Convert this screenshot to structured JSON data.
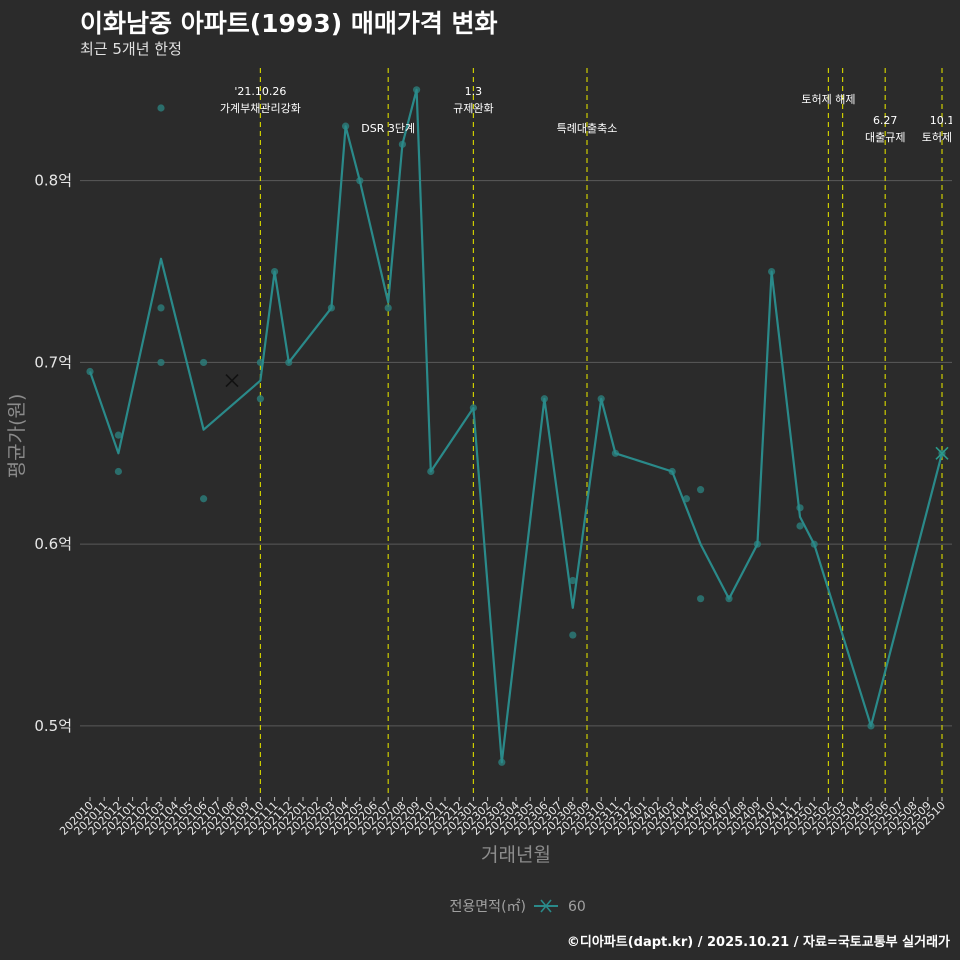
{
  "header": {
    "title": "이화남중 아파트(1993) 매매가격 변화",
    "subtitle": "최근 5개년 한정"
  },
  "caption": "©디아파트(dapt.kr) / 2025.10.21 / 자료=국토교통부 실거래가",
  "colors": {
    "background": "#2b2b2b",
    "series": "#2a8a8a",
    "points": "#2b7a78",
    "events": "#cccc00",
    "grid": "#5a5a5a"
  },
  "chart_data": {
    "type": "line",
    "xlabel": "거래년월",
    "ylabel": "평균가(원)",
    "ylim": [
      0.462,
      0.862
    ],
    "yticks": [
      0.5,
      0.6,
      0.7,
      0.8
    ],
    "ytick_labels": [
      "0.5억",
      "0.6억",
      "0.7억",
      "0.8억"
    ],
    "categories": [
      "202010",
      "202011",
      "202012",
      "202101",
      "202102",
      "202103",
      "202104",
      "202105",
      "202106",
      "202107",
      "202108",
      "202109",
      "202110",
      "202111",
      "202112",
      "202201",
      "202202",
      "202203",
      "202204",
      "202205",
      "202206",
      "202207",
      "202208",
      "202209",
      "202210",
      "202211",
      "202212",
      "202301",
      "202302",
      "202303",
      "202304",
      "202305",
      "202306",
      "202307",
      "202308",
      "202309",
      "202310",
      "202311",
      "202312",
      "202401",
      "202402",
      "202403",
      "202404",
      "202405",
      "202406",
      "202407",
      "202408",
      "202409",
      "202410",
      "202411",
      "202412",
      "202501",
      "202502",
      "202503",
      "202504",
      "202505",
      "202506",
      "202507",
      "202508",
      "202509",
      "202510"
    ],
    "legend": {
      "title": "전용면적(㎡)",
      "entries": [
        "60"
      ]
    },
    "series": [
      {
        "name": "60",
        "line": [
          {
            "x": "202010",
            "y": 0.695
          },
          {
            "x": "202012",
            "y": 0.65
          },
          {
            "x": "202103",
            "y": 0.757
          },
          {
            "x": "202106",
            "y": 0.663
          },
          {
            "x": "202110",
            "y": 0.69
          },
          {
            "x": "202111",
            "y": 0.75
          },
          {
            "x": "202112",
            "y": 0.7
          },
          {
            "x": "202203",
            "y": 0.73
          },
          {
            "x": "202204",
            "y": 0.83
          },
          {
            "x": "202205",
            "y": 0.8
          },
          {
            "x": "202207",
            "y": 0.733
          },
          {
            "x": "202208",
            "y": 0.82
          },
          {
            "x": "202209",
            "y": 0.85
          },
          {
            "x": "202210",
            "y": 0.64
          },
          {
            "x": "202301",
            "y": 0.675
          },
          {
            "x": "202303",
            "y": 0.48
          },
          {
            "x": "202306",
            "y": 0.68
          },
          {
            "x": "202308",
            "y": 0.565
          },
          {
            "x": "202310",
            "y": 0.68
          },
          {
            "x": "202311",
            "y": 0.65
          },
          {
            "x": "202403",
            "y": 0.64
          },
          {
            "x": "202405",
            "y": 0.6
          },
          {
            "x": "202407",
            "y": 0.57
          },
          {
            "x": "202409",
            "y": 0.6
          },
          {
            "x": "202410",
            "y": 0.75
          },
          {
            "x": "202412",
            "y": 0.615
          },
          {
            "x": "202501",
            "y": 0.6
          },
          {
            "x": "202505",
            "y": 0.5
          },
          {
            "x": "202510",
            "y": 0.65
          }
        ],
        "points": [
          {
            "x": "202010",
            "y": 0.695
          },
          {
            "x": "202012",
            "y": 0.66
          },
          {
            "x": "202012",
            "y": 0.64
          },
          {
            "x": "202103",
            "y": 0.84
          },
          {
            "x": "202103",
            "y": 0.73
          },
          {
            "x": "202103",
            "y": 0.7
          },
          {
            "x": "202106",
            "y": 0.7
          },
          {
            "x": "202106",
            "y": 0.625
          },
          {
            "x": "202110",
            "y": 0.7
          },
          {
            "x": "202110",
            "y": 0.68
          },
          {
            "x": "202111",
            "y": 0.75
          },
          {
            "x": "202112",
            "y": 0.7
          },
          {
            "x": "202203",
            "y": 0.73
          },
          {
            "x": "202204",
            "y": 0.83
          },
          {
            "x": "202205",
            "y": 0.8
          },
          {
            "x": "202207",
            "y": 0.73
          },
          {
            "x": "202208",
            "y": 0.82
          },
          {
            "x": "202209",
            "y": 0.85
          },
          {
            "x": "202210",
            "y": 0.64
          },
          {
            "x": "202301",
            "y": 0.675
          },
          {
            "x": "202303",
            "y": 0.48
          },
          {
            "x": "202306",
            "y": 0.68
          },
          {
            "x": "202308",
            "y": 0.58
          },
          {
            "x": "202308",
            "y": 0.55
          },
          {
            "x": "202310",
            "y": 0.68
          },
          {
            "x": "202311",
            "y": 0.65
          },
          {
            "x": "202403",
            "y": 0.64
          },
          {
            "x": "202404",
            "y": 0.625
          },
          {
            "x": "202405",
            "y": 0.63
          },
          {
            "x": "202405",
            "y": 0.57
          },
          {
            "x": "202407",
            "y": 0.57
          },
          {
            "x": "202409",
            "y": 0.6
          },
          {
            "x": "202410",
            "y": 0.75
          },
          {
            "x": "202412",
            "y": 0.62
          },
          {
            "x": "202412",
            "y": 0.61
          },
          {
            "x": "202501",
            "y": 0.6
          },
          {
            "x": "202505",
            "y": 0.5
          },
          {
            "x": "202510",
            "y": 0.65
          }
        ],
        "markers": [
          {
            "x": "202108",
            "y": 0.69
          },
          {
            "x": "202510",
            "y": 0.65
          }
        ]
      }
    ],
    "events": [
      {
        "x": "202110",
        "lines": [
          "'21.10.26",
          "가계부채관리강화"
        ],
        "row": 0
      },
      {
        "x": "202207",
        "lines": [
          "DSR 3단계"
        ],
        "row": 2
      },
      {
        "x": "202301",
        "lines": [
          "1.3",
          "규제완화"
        ],
        "row": 0
      },
      {
        "x": "202309",
        "lines": [
          "특례대출축소"
        ],
        "row": 2
      },
      {
        "x": "202502",
        "lines": [
          "토허제 해제"
        ],
        "row": 1
      },
      {
        "x": "202503",
        "lines": [],
        "row": 1
      },
      {
        "x": "202506",
        "lines": [
          "6.27",
          "대출규제"
        ],
        "row": 3
      },
      {
        "x": "202510",
        "lines": [
          "10.1",
          "토허제확"
        ],
        "row": 3
      }
    ]
  }
}
